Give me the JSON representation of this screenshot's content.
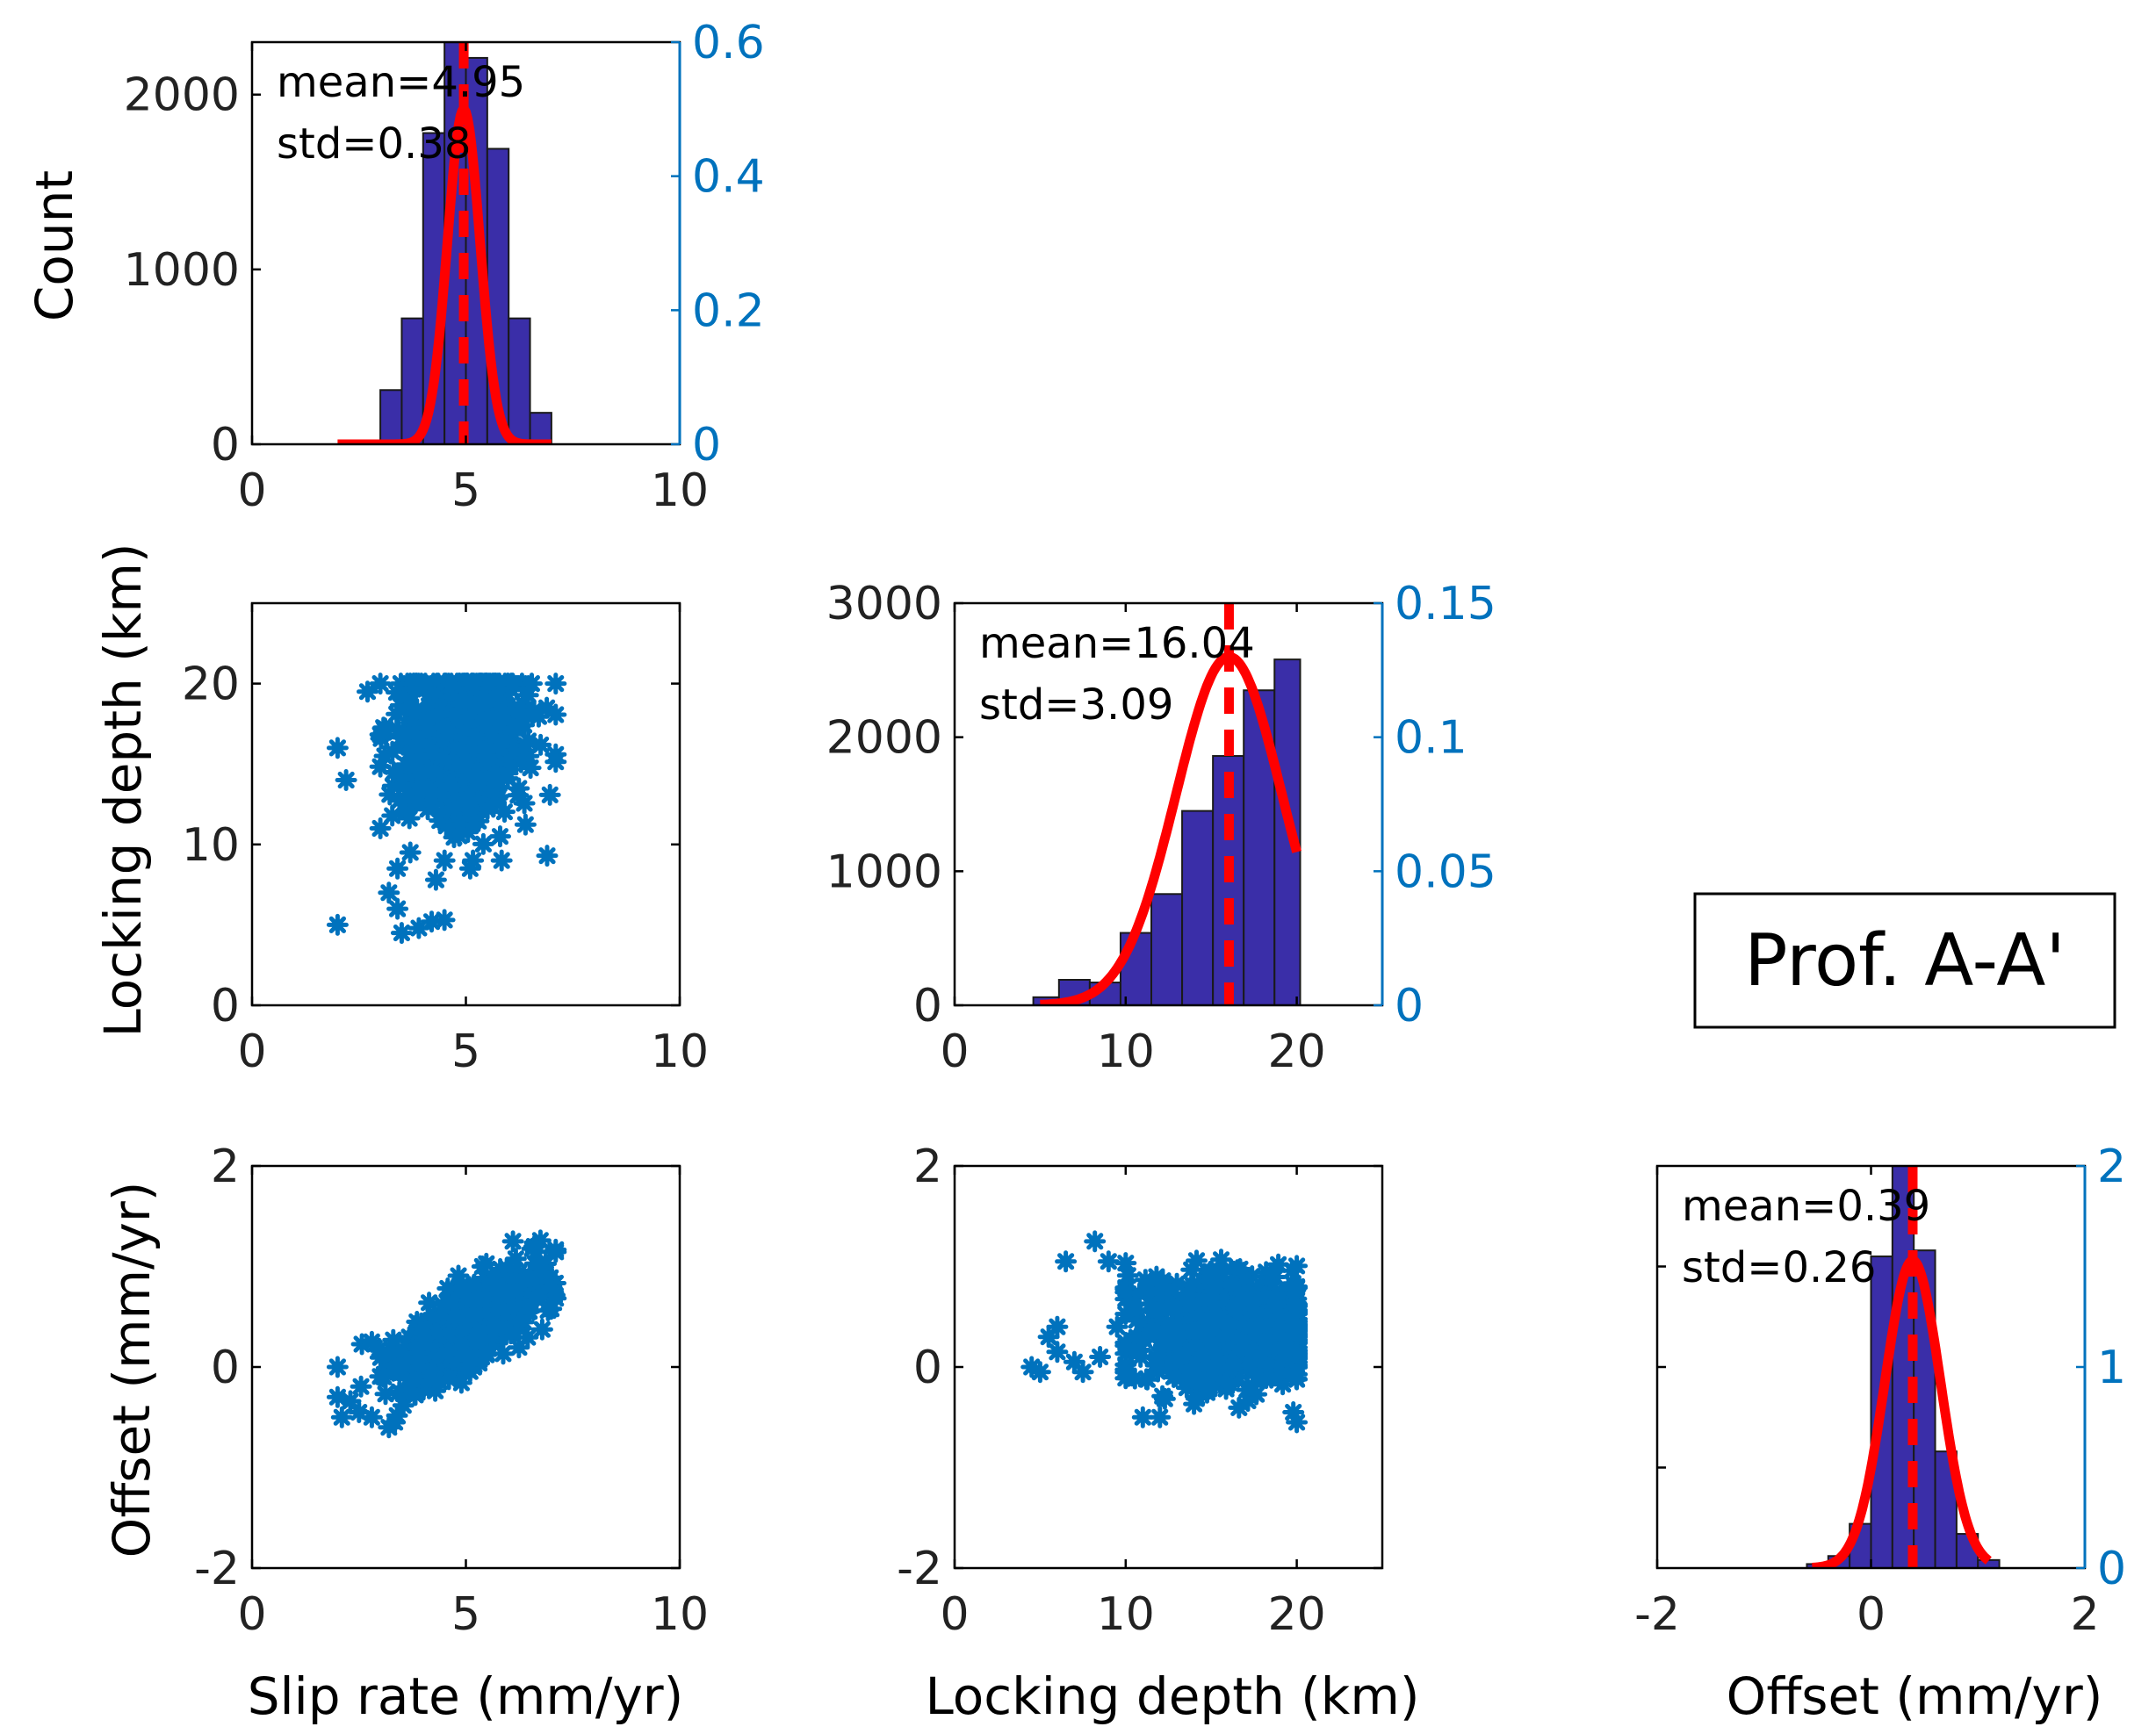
{
  "figure_label": "Prof. A-A'",
  "colors": {
    "hist_bar": "#3a2ea8",
    "scatter": "#0072bd",
    "fit_curve": "#ff0000",
    "right_axis": "#0072bd",
    "axis": "#000000"
  },
  "axis_labels": {
    "count": "Count",
    "locking_depth_y": "Locking depth (km)",
    "offset_y": "Offset (mm/yr)",
    "slip_rate_x": "Slip rate (mm/yr)",
    "locking_depth_x": "Locking depth (km)",
    "offset_x": "Offset (mm/yr)"
  },
  "chart_data": [
    {
      "id": "hist_slip",
      "type": "bar",
      "title": "",
      "xlim": [
        0,
        10
      ],
      "xticks": [
        0,
        5,
        10
      ],
      "ylim": [
        0,
        2300
      ],
      "yticks": [
        0,
        1000,
        2000
      ],
      "show_left_ticks": true,
      "y2lim": [
        0,
        0.6
      ],
      "y2ticks": [
        0,
        0.2,
        0.4,
        0.6
      ],
      "y2ticklabels": [
        "0",
        "0.2",
        "0.4",
        "0.6"
      ],
      "bin_edges": [
        3,
        3.5,
        4,
        4.5,
        5,
        5.5,
        6,
        6.5,
        7
      ],
      "counts": [
        310,
        720,
        1780,
        2400,
        2210,
        1690,
        720,
        180
      ],
      "fit": {
        "mean": 4.95,
        "std": 0.38,
        "peak": 0.5,
        "xrange": [
          2,
          7
        ]
      },
      "mean_line": 4.95,
      "annotation": [
        "mean=4.95",
        "std=0.38"
      ],
      "xlabel": "",
      "ylabel": "Count"
    },
    {
      "id": "scatter_slip_depth",
      "type": "scatter",
      "xlim": [
        0,
        10
      ],
      "xticks": [
        0,
        5,
        10
      ],
      "ylim": [
        0,
        25
      ],
      "yticks": [
        0,
        10,
        20
      ],
      "cloud": {
        "x_center": 4.9,
        "x_spread": 0.75,
        "y_center": 16.5,
        "y_spread": 2.5,
        "xmin": 3,
        "xmax": 7.1,
        "ymin": 9,
        "ymax": 20,
        "n": 700
      },
      "points": [
        [
          2,
          5
        ],
        [
          2,
          16
        ],
        [
          2.2,
          14
        ],
        [
          2.7,
          19.5
        ],
        [
          3.2,
          7
        ],
        [
          3.5,
          4.5
        ],
        [
          3.4,
          6
        ],
        [
          3.9,
          4.8
        ],
        [
          4.2,
          5.2
        ],
        [
          4.5,
          5.3
        ],
        [
          3,
          11
        ],
        [
          3.4,
          8.5
        ],
        [
          3.7,
          9.5
        ],
        [
          4.3,
          7.8
        ],
        [
          5.1,
          8.5
        ],
        [
          5.8,
          10.5
        ],
        [
          6.9,
          9.3
        ],
        [
          3.6,
          12
        ],
        [
          4,
          13.5
        ],
        [
          3.1,
          15.5
        ]
      ],
      "xlabel": "",
      "ylabel": "Locking depth (km)"
    },
    {
      "id": "hist_depth",
      "type": "bar",
      "title": "",
      "xlim": [
        0,
        25
      ],
      "xticks": [
        0,
        10,
        20
      ],
      "ylim": [
        0,
        3000
      ],
      "yticks": [
        0,
        1000,
        2000,
        3000
      ],
      "show_left_ticks": true,
      "y2lim": [
        0,
        0.15
      ],
      "y2ticks": [
        0,
        0.05,
        0.1,
        0.15
      ],
      "y2ticklabels": [
        "0",
        "0.05",
        "0.1",
        "0.15"
      ],
      "bin_edges": [
        4.6,
        6.1,
        7.9,
        9.7,
        11.5,
        13.3,
        15.1,
        16.9,
        18.7,
        20.2
      ],
      "counts": [
        60,
        190,
        170,
        540,
        830,
        1450,
        1860,
        2350,
        2580
      ],
      "fit": {
        "mean": 16.04,
        "std": 3.09,
        "peak": 0.13,
        "xrange": [
          5,
          20
        ]
      },
      "mean_line": 16.04,
      "annotation": [
        "mean=16.04",
        "std=3.09"
      ],
      "xlabel": "",
      "ylabel": ""
    },
    {
      "id": "scatter_slip_offset",
      "type": "scatter",
      "xlim": [
        0,
        10
      ],
      "xticks": [
        0,
        5,
        10
      ],
      "ylim": [
        -2,
        2
      ],
      "yticks": [
        -2,
        0,
        2
      ],
      "cloud": {
        "x_center": 5,
        "x_spread": 0.85,
        "y_center": 0.38,
        "y_spread": 0.2,
        "slope": 0.24,
        "xmin": 2,
        "xmax": 7.1,
        "ymin": -0.55,
        "ymax": 1.3,
        "n": 700
      },
      "points": [
        [
          2,
          0
        ],
        [
          2,
          -0.3
        ],
        [
          2.1,
          -0.5
        ],
        [
          2.5,
          -0.45
        ],
        [
          2.8,
          -0.5
        ],
        [
          3.2,
          -0.6
        ],
        [
          2.8,
          0.25
        ],
        [
          6.1,
          1.25
        ],
        [
          6.6,
          1.2
        ],
        [
          7,
          0.8
        ]
      ],
      "xlabel": "Slip rate (mm/yr)",
      "ylabel": "Offset (mm/yr)"
    },
    {
      "id": "scatter_depth_offset",
      "type": "scatter",
      "xlim": [
        0,
        25
      ],
      "xticks": [
        0,
        10,
        20
      ],
      "ylim": [
        -2,
        2
      ],
      "yticks": [
        -2,
        0,
        2
      ],
      "cloud": {
        "x_center": 16,
        "x_spread": 2.8,
        "y_center": 0.38,
        "y_spread": 0.28,
        "xmin": 10,
        "xmax": 20,
        "ymin": -0.55,
        "ymax": 1.15,
        "n": 700
      },
      "points": [
        [
          4.5,
          0
        ],
        [
          5,
          -0.05
        ],
        [
          5.5,
          0.3
        ],
        [
          6,
          0.4
        ],
        [
          6.5,
          1.05
        ],
        [
          7,
          0.05
        ],
        [
          8.2,
          1.25
        ],
        [
          9,
          1.05
        ],
        [
          8.5,
          0.1
        ],
        [
          7.5,
          -0.05
        ],
        [
          9.5,
          0.4
        ],
        [
          11,
          -0.5
        ],
        [
          12,
          -0.5
        ],
        [
          19.8,
          -0.45
        ],
        [
          6,
          0.15
        ]
      ],
      "xlabel": "Locking depth (km)",
      "ylabel": ""
    },
    {
      "id": "hist_offset",
      "type": "bar",
      "title": "",
      "xlim": [
        -2,
        2
      ],
      "xticks": [
        -2,
        0,
        2
      ],
      "ylim": [
        0,
        2.0
      ],
      "yticks": [],
      "show_left_ticks": false,
      "y2lim": [
        0,
        2
      ],
      "y2ticks": [
        0,
        1,
        2
      ],
      "y2ticklabels": [
        "0",
        "1",
        "2"
      ],
      "bin_edges": [
        -0.6,
        -0.4,
        -0.2,
        0,
        0.2,
        0.4,
        0.6,
        0.8,
        1.0,
        1.2
      ],
      "counts": [
        0.02,
        0.06,
        0.22,
        1.55,
        2.2,
        1.58,
        0.58,
        0.17,
        0.04
      ],
      "fit": {
        "mean": 0.39,
        "std": 0.26,
        "peak": 1.53,
        "xrange": [
          -0.55,
          1.1
        ]
      },
      "mean_line": 0.39,
      "annotation": [
        "mean=0.39",
        "std=0.26"
      ],
      "xlabel": "Offset (mm/yr)",
      "ylabel": ""
    }
  ]
}
